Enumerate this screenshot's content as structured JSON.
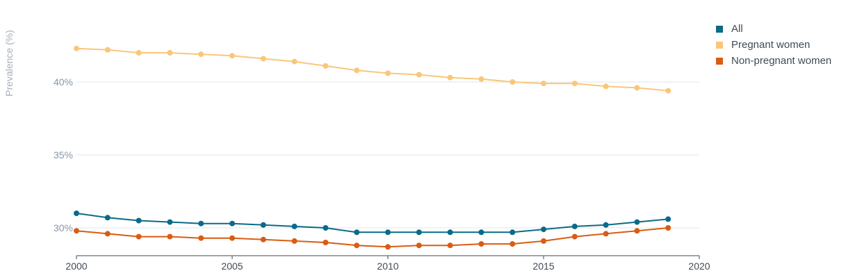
{
  "chart_data": {
    "type": "line",
    "ylabel": "Prevalence (%)",
    "xlim": [
      2000,
      2020
    ],
    "ylim": [
      28,
      44
    ],
    "x_ticks": [
      "2000",
      "2005",
      "2010",
      "2015",
      "2020"
    ],
    "y_ticks": [
      {
        "value": 30,
        "label": "30%"
      },
      {
        "value": 35,
        "label": "35%"
      },
      {
        "value": 40,
        "label": "40%"
      }
    ],
    "grid": "horizontal",
    "legend_position": "top-right",
    "x": [
      2000,
      2001,
      2002,
      2003,
      2004,
      2005,
      2006,
      2007,
      2008,
      2009,
      2010,
      2011,
      2012,
      2013,
      2014,
      2015,
      2016,
      2017,
      2018,
      2019
    ],
    "series": [
      {
        "name": "All",
        "color": "#0b6a8a",
        "values": [
          31.0,
          30.7,
          30.5,
          30.4,
          30.3,
          30.3,
          30.2,
          30.1,
          30.0,
          29.7,
          29.7,
          29.7,
          29.7,
          29.7,
          29.7,
          29.9,
          30.1,
          30.2,
          30.4,
          30.6
        ]
      },
      {
        "name": "Pregnant women",
        "color": "#f9c77a",
        "values": [
          42.3,
          42.2,
          42.0,
          42.0,
          41.9,
          41.8,
          41.6,
          41.4,
          41.1,
          40.8,
          40.6,
          40.5,
          40.3,
          40.2,
          40.0,
          39.9,
          39.9,
          39.7,
          39.6,
          39.4
        ]
      },
      {
        "name": "Non-pregnant women",
        "color": "#d95c12",
        "values": [
          29.8,
          29.6,
          29.4,
          29.4,
          29.3,
          29.3,
          29.2,
          29.1,
          29.0,
          28.8,
          28.7,
          28.8,
          28.8,
          28.9,
          28.9,
          29.1,
          29.4,
          29.6,
          29.8,
          30.0
        ]
      }
    ]
  }
}
